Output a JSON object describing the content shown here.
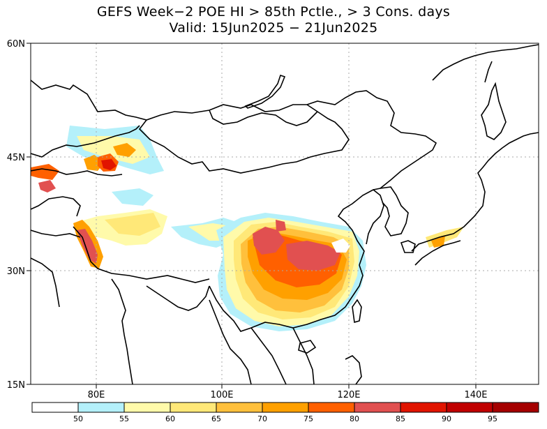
{
  "title_line1": "GEFS Week−2 POE HI > 85th Pctle., > 3 Cons. days",
  "title_line2": "Valid: 15Jun2025 − 21Jun2025",
  "axes": {
    "lat_labels": [
      "60N",
      "45N",
      "30N",
      "15N"
    ],
    "lon_labels": [
      "80E",
      "100E",
      "120E",
      "140E"
    ]
  },
  "colorbar": {
    "tick_labels": [
      "50",
      "55",
      "60",
      "65",
      "70",
      "75",
      "80",
      "85",
      "90",
      "95"
    ],
    "colors": [
      "#ffffff",
      "#b4f0fa",
      "#fffaaa",
      "#ffe878",
      "#ffc03c",
      "#ffa000",
      "#ff6000",
      "#e15050",
      "#e11400",
      "#c00000",
      "#a50000"
    ]
  }
}
